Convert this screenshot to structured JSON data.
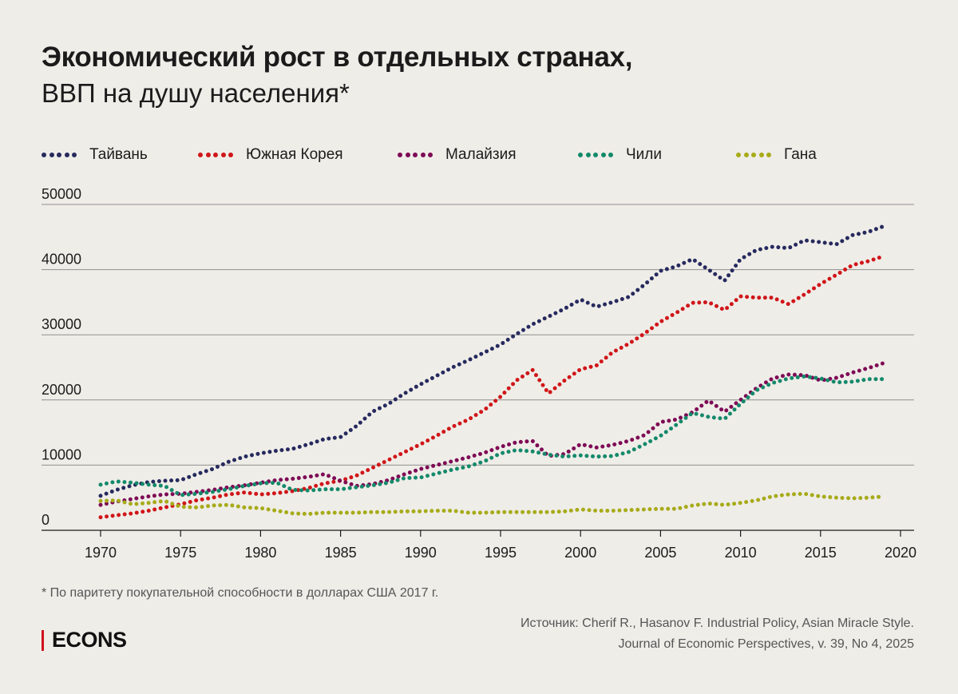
{
  "title": "Экономический рост в отдельных странах,",
  "subtitle": "ВВП на душу населения*",
  "footnote": "* По паритету покупательной способности в долларах США 2017 г.",
  "source_line1": "Источник: Cherif R., Hasanov F. Industrial Policy, Asian Miracle Style.",
  "source_line2": "Journal of Economic Perspectives, v. 39, No 4, 2025",
  "brand": "ECONS",
  "colors": {
    "brand_bar": "#d0111b"
  },
  "chart_data": {
    "type": "line",
    "line_style": "dotted",
    "x": [
      1970,
      1971,
      1972,
      1973,
      1974,
      1975,
      1976,
      1977,
      1978,
      1979,
      1980,
      1981,
      1982,
      1983,
      1984,
      1985,
      1986,
      1987,
      1988,
      1989,
      1990,
      1991,
      1992,
      1993,
      1994,
      1995,
      1996,
      1997,
      1998,
      1999,
      2000,
      2001,
      2002,
      2003,
      2004,
      2005,
      2006,
      2007,
      2008,
      2009,
      2010,
      2011,
      2012,
      2013,
      2014,
      2015,
      2016,
      2017,
      2018,
      2019
    ],
    "xlim": [
      1970,
      2020
    ],
    "x_ticks": [
      1970,
      1975,
      1980,
      1985,
      1990,
      1995,
      2000,
      2005,
      2010,
      2015,
      2020
    ],
    "ylim": [
      0,
      50000
    ],
    "y_ticks": [
      0,
      10000,
      20000,
      30000,
      40000,
      50000
    ],
    "y_tick_labels": [
      "0",
      "10000",
      "20000",
      "30000",
      "40000",
      "50000"
    ],
    "grid": "horizontal",
    "legend_placement": "top",
    "series": [
      {
        "name": "Тайвань",
        "color": "#262a5e",
        "values": [
          5300,
          6200,
          6900,
          7400,
          7600,
          7700,
          8600,
          9400,
          10500,
          11300,
          11800,
          12200,
          12500,
          13200,
          14000,
          14300,
          16000,
          18200,
          19400,
          21000,
          22400,
          23700,
          25000,
          26100,
          27300,
          28500,
          30100,
          31600,
          32800,
          34000,
          35400,
          34300,
          35000,
          35800,
          37700,
          39800,
          40500,
          41600,
          40000,
          38300,
          41600,
          43000,
          43500,
          43300,
          44500,
          44200,
          43900,
          45300,
          45800,
          46700
        ]
      },
      {
        "name": "Южная Корея",
        "color": "#d01619",
        "values": [
          2000,
          2300,
          2600,
          3000,
          3500,
          4000,
          4600,
          5000,
          5500,
          5800,
          5500,
          5700,
          6000,
          6500,
          7200,
          7600,
          8400,
          9600,
          10800,
          12000,
          13200,
          14500,
          15900,
          17000,
          18500,
          20500,
          23000,
          24600,
          21000,
          23000,
          24700,
          25300,
          27300,
          28600,
          30200,
          32000,
          33400,
          34900,
          35000,
          33800,
          35900,
          35700,
          35700,
          34700,
          36200,
          37800,
          39200,
          40700,
          41300,
          42100
        ]
      },
      {
        "name": "Малайзия",
        "color": "#7e0a55",
        "values": [
          3900,
          4400,
          4800,
          5200,
          5500,
          5600,
          5900,
          6200,
          6600,
          6900,
          7300,
          7700,
          7900,
          8200,
          8600,
          7600,
          6800,
          7100,
          7700,
          8600,
          9400,
          10000,
          10600,
          11200,
          11900,
          12800,
          13500,
          13700,
          11400,
          11700,
          13200,
          12700,
          13100,
          13700,
          14600,
          16600,
          17000,
          18100,
          19900,
          18200,
          20000,
          21800,
          23300,
          23900,
          23800,
          23000,
          23400,
          24200,
          24900,
          25700
        ]
      },
      {
        "name": "Чили",
        "color": "#13896a",
        "values": [
          7000,
          7500,
          7300,
          7000,
          6800,
          5400,
          5600,
          5900,
          6300,
          6800,
          7200,
          7300,
          6200,
          6100,
          6300,
          6300,
          6600,
          6900,
          7300,
          8000,
          8100,
          8700,
          9300,
          9800,
          10600,
          11800,
          12300,
          12100,
          11600,
          11300,
          11500,
          11300,
          11400,
          12000,
          13200,
          14500,
          16200,
          18000,
          17400,
          17100,
          19400,
          21500,
          22600,
          23300,
          23600,
          23300,
          22700,
          22800,
          23200,
          23200
        ]
      },
      {
        "name": "Гана",
        "color": "#a7ab18",
        "values": [
          4500,
          4600,
          4000,
          4200,
          4500,
          3600,
          3500,
          3800,
          3900,
          3500,
          3400,
          3000,
          2600,
          2500,
          2700,
          2700,
          2700,
          2800,
          2800,
          2900,
          2900,
          3000,
          3000,
          2700,
          2700,
          2800,
          2800,
          2800,
          2800,
          2900,
          3200,
          3000,
          3000,
          3100,
          3200,
          3300,
          3300,
          3800,
          4100,
          3900,
          4200,
          4600,
          5200,
          5500,
          5600,
          5200,
          5000,
          4900,
          5000,
          5200
        ]
      }
    ]
  }
}
